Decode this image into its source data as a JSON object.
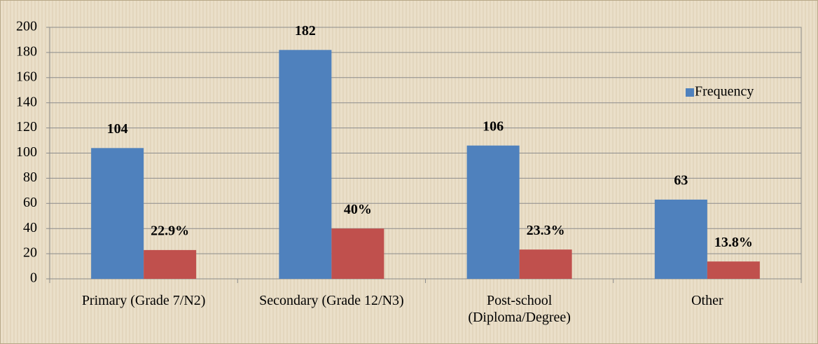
{
  "chart_data": {
    "type": "bar",
    "categories": [
      "Primary  (Grade 7/N2)",
      "Secondary (Grade 12/N3)",
      "Post-school (Diploma/Degree)",
      "Other"
    ],
    "series": [
      {
        "name": "Frequency",
        "color": "#4f81bd",
        "values": [
          104,
          182,
          106,
          63
        ]
      },
      {
        "color": "#c0504d",
        "values": [
          22.9,
          40,
          23.3,
          13.8
        ],
        "value_labels": [
          "22.9%",
          "40%",
          "23.3%",
          "13.8%"
        ]
      }
    ],
    "ylim": [
      0,
      200
    ],
    "yticks": [
      0,
      20,
      40,
      60,
      80,
      100,
      120,
      140,
      160,
      180,
      200
    ],
    "grid": true,
    "legend": "right"
  }
}
